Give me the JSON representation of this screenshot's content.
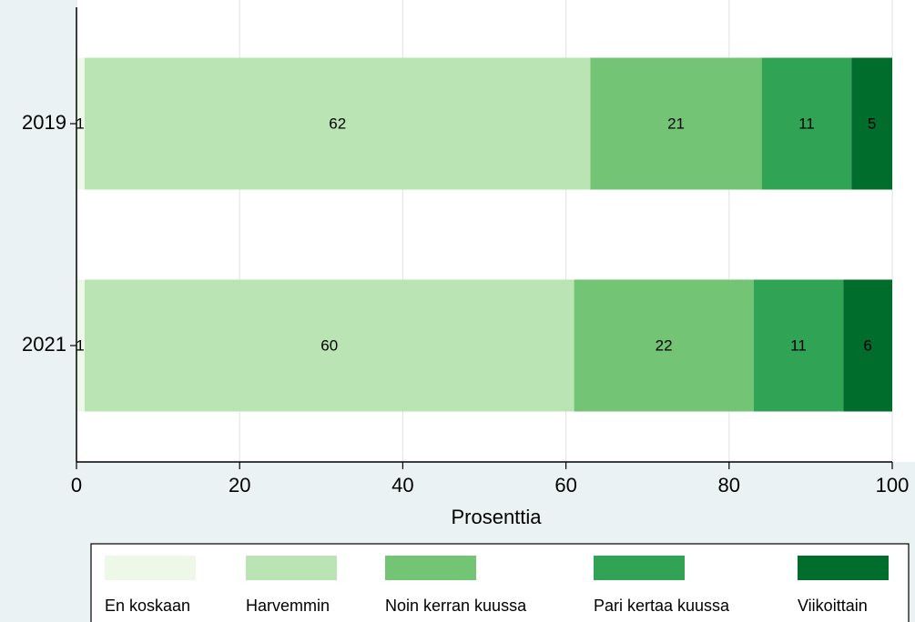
{
  "chart_data": {
    "type": "stacked-bar-horizontal",
    "categories": [
      "2019",
      "2021"
    ],
    "series": [
      {
        "name": "En koskaan",
        "color": "#edf8e9",
        "values": [
          1,
          1
        ]
      },
      {
        "name": "Harvemmin",
        "color": "#bae4b3",
        "values": [
          62,
          60
        ]
      },
      {
        "name": "Noin kerran kuussa",
        "color": "#74c476",
        "values": [
          21,
          22
        ]
      },
      {
        "name": "Pari kertaa kuussa",
        "color": "#31a354",
        "values": [
          11,
          11
        ]
      },
      {
        "name": "Viikoittain",
        "color": "#006d2c",
        "values": [
          5,
          6
        ]
      }
    ],
    "xlabel": "Prosenttia",
    "xlim": [
      0,
      100
    ],
    "xticks": [
      0,
      20,
      40,
      60,
      80,
      100
    ],
    "grid": true,
    "legend": "bottom"
  }
}
